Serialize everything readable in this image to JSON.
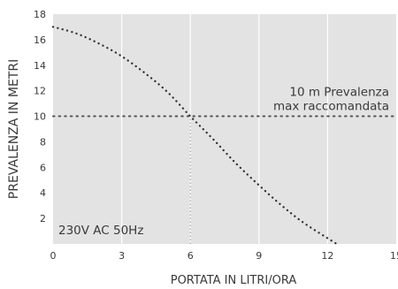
{
  "chart_data": {
    "type": "line",
    "title": "",
    "xlabel": "PORTATA IN LITRI/ORA",
    "ylabel": "PREVALENZA IN METRI",
    "xlim": [
      0,
      15
    ],
    "ylim": [
      0,
      18
    ],
    "x_ticks": [
      0,
      3,
      6,
      9,
      12,
      15
    ],
    "y_ticks": [
      2,
      4,
      6,
      8,
      10,
      12,
      14,
      16,
      18
    ],
    "y_tick_labels": [
      "2",
      "4",
      "6",
      "8",
      "10",
      "12",
      "14",
      "16",
      "18"
    ],
    "x_tick_labels": [
      "0",
      "3",
      "6",
      "9",
      "12",
      "15"
    ],
    "grid": {
      "vertical": true,
      "horizontal": false
    },
    "series": [
      {
        "x": [
          0,
          1,
          2,
          3,
          4,
          5,
          6,
          7,
          8,
          9,
          10,
          11,
          12.4
        ],
        "y": [
          17,
          16.5,
          15.7,
          14.7,
          13.4,
          11.9,
          10,
          8.2,
          6.3,
          4.6,
          3.0,
          1.6,
          0
        ],
        "color": "#333333",
        "style": "dotted"
      }
    ],
    "reference_lines": [
      {
        "orientation": "horizontal",
        "value": 10,
        "style": "dotted",
        "color": "#555555"
      },
      {
        "orientation": "vertical",
        "value": 6,
        "from": 0,
        "to": 10,
        "style": "dotted",
        "color": "#999999"
      }
    ],
    "annotations": {
      "recommended_line1": "10 m Prevalenza",
      "recommended_line2": "max raccomandata",
      "power_spec": "230V AC 50Hz"
    },
    "colors": {
      "frame_fill": "#e3e3e3",
      "grid": "#ffffff",
      "text": "#3a3a3a"
    }
  }
}
